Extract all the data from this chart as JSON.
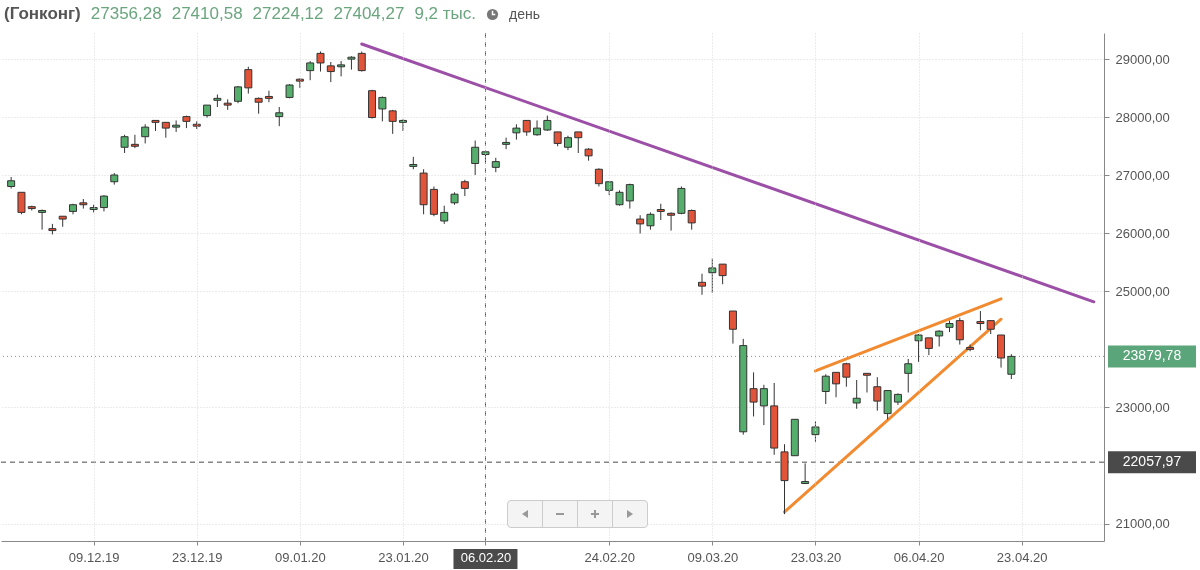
{
  "chart_data": {
    "type": "candlestick",
    "title": "(Гонконг)",
    "annotations": [
      "27356,28",
      "27410,58",
      "27224,12",
      "27404,27",
      "9,2 тыс.",
      "день"
    ],
    "categories": [
      null,
      null,
      null,
      null,
      null,
      null,
      null,
      null,
      "09.12.19",
      null,
      null,
      null,
      null,
      null,
      null,
      null,
      null,
      null,
      "23.12.19",
      null,
      null,
      null,
      null,
      null,
      null,
      null,
      null,
      null,
      "09.01.20",
      null,
      null,
      null,
      null,
      null,
      null,
      null,
      null,
      null,
      "23.01.20",
      null,
      null,
      null,
      null,
      null,
      null,
      null,
      "06.02.20",
      null,
      null,
      null,
      null,
      null,
      null,
      null,
      null,
      null,
      null,
      null,
      "24.02.20",
      null,
      null,
      null,
      null,
      null,
      null,
      null,
      null,
      null,
      "09.03.20",
      null,
      null,
      null,
      null,
      null,
      null,
      null,
      null,
      null,
      "23.03.20",
      null,
      null,
      null,
      null,
      null,
      null,
      null,
      null,
      null,
      "06.04.20",
      null,
      null,
      null,
      null,
      null,
      null,
      null,
      null,
      null,
      "23.04.20",
      null,
      null,
      null,
      null,
      null,
      null,
      null
    ],
    "ohlc": [
      [
        26806,
        26970,
        26772,
        26905
      ],
      [
        26706,
        26706,
        26327,
        26360
      ],
      [
        26459,
        26476,
        26393,
        26426
      ],
      [
        26360,
        26410,
        26063,
        26393
      ],
      [
        26080,
        26162,
        25981,
        26047
      ],
      [
        26294,
        26294,
        26113,
        26245
      ],
      [
        26377,
        26509,
        26327,
        26492
      ],
      [
        26525,
        26591,
        26426,
        26492
      ],
      [
        26410,
        26492,
        26360,
        26443
      ],
      [
        26443,
        26657,
        26377,
        26641
      ],
      [
        26888,
        27037,
        26839,
        27004
      ],
      [
        27482,
        27697,
        27383,
        27664
      ],
      [
        27532,
        27697,
        27466,
        27499
      ],
      [
        27664,
        27878,
        27548,
        27829
      ],
      [
        27944,
        27944,
        27763,
        27911
      ],
      [
        27911,
        27911,
        27647,
        27812
      ],
      [
        27829,
        27944,
        27746,
        27862
      ],
      [
        28010,
        28027,
        27812,
        27928
      ],
      [
        27878,
        27928,
        27796,
        27845
      ],
      [
        28027,
        28208,
        27994,
        28208
      ],
      [
        28291,
        28390,
        28175,
        28324
      ],
      [
        28241,
        28307,
        28126,
        28208
      ],
      [
        28274,
        28538,
        28241,
        28522
      ],
      [
        28819,
        28868,
        28406,
        28505
      ],
      [
        28324,
        28340,
        28060,
        28258
      ],
      [
        28357,
        28456,
        28258,
        28324
      ],
      [
        28010,
        28175,
        27845,
        28076
      ],
      [
        28340,
        28571,
        28324,
        28554
      ],
      [
        28654,
        28670,
        28505,
        28621
      ],
      [
        28802,
        28967,
        28637,
        28934
      ],
      [
        29099,
        29132,
        28786,
        28934
      ],
      [
        28884,
        28951,
        28604,
        28786
      ],
      [
        28868,
        28967,
        28703,
        28901
      ],
      [
        29000,
        29050,
        28819,
        29033
      ],
      [
        29099,
        29132,
        28786,
        28802
      ],
      [
        28456,
        28472,
        27977,
        27994
      ],
      [
        28142,
        28357,
        27928,
        28340
      ],
      [
        28109,
        28126,
        27713,
        27928
      ],
      [
        27911,
        27961,
        27763,
        27944
      ],
      [
        27152,
        27317,
        27103,
        27185
      ],
      [
        27037,
        27103,
        26327,
        26492
      ],
      [
        26756,
        26806,
        26294,
        26327
      ],
      [
        26212,
        26476,
        26162,
        26360
      ],
      [
        26525,
        26706,
        26492,
        26674
      ],
      [
        26888,
        26921,
        26641,
        26773
      ],
      [
        27202,
        27598,
        27004,
        27482
      ],
      [
        27356.28,
        27410.58,
        27224.12,
        27404.27
      ],
      [
        27136,
        27301,
        27053,
        27235
      ],
      [
        27532,
        27647,
        27449,
        27565
      ],
      [
        27730,
        27878,
        27614,
        27812
      ],
      [
        27944,
        27944,
        27680,
        27746
      ],
      [
        27697,
        27944,
        27680,
        27812
      ],
      [
        27779,
        28027,
        27763,
        27944
      ],
      [
        27746,
        27746,
        27499,
        27548
      ],
      [
        27482,
        27680,
        27433,
        27647
      ],
      [
        27746,
        27746,
        27383,
        27647
      ],
      [
        27449,
        27466,
        27251,
        27334
      ],
      [
        27103,
        27119,
        26806,
        26855
      ],
      [
        26740,
        26888,
        26657,
        26888
      ],
      [
        26492,
        26740,
        26476,
        26706
      ],
      [
        26558,
        26855,
        26426,
        26839
      ],
      [
        26245,
        26311,
        25997,
        26162
      ],
      [
        26129,
        26360,
        26063,
        26327
      ],
      [
        26410,
        26509,
        26228,
        26377
      ],
      [
        26344,
        26360,
        26047,
        26311
      ],
      [
        26344,
        26806,
        26327,
        26773
      ],
      [
        26393,
        26410,
        26063,
        26179
      ],
      [
        25156,
        25304,
        24941,
        25090
      ],
      [
        25321,
        25568,
        24974,
        25403
      ],
      [
        25469,
        25469,
        25123,
        25271
      ],
      [
        24661,
        24661,
        24100,
        24347
      ],
      [
        22581,
        24182,
        22532,
        24066
      ],
      [
        23324,
        23605,
        22845,
        23093
      ],
      [
        23027,
        23390,
        22697,
        23324
      ],
      [
        23027,
        23423,
        22185,
        22301
      ],
      [
        22235,
        22367,
        21162,
        21740
      ],
      [
        22169,
        22796,
        22169,
        22796
      ],
      [
        21690,
        22037,
        21690,
        21724
      ],
      [
        22532,
        22763,
        22400,
        22664
      ],
      [
        23275,
        23572,
        23060,
        23539
      ],
      [
        23605,
        23605,
        23176,
        23407
      ],
      [
        23753,
        23770,
        23357,
        23522
      ],
      [
        23077,
        23473,
        22978,
        23159
      ],
      [
        23588,
        23588,
        23258,
        23555
      ],
      [
        23357,
        23522,
        22945,
        23110
      ],
      [
        22895,
        23291,
        22796,
        23291
      ],
      [
        23093,
        23242,
        23044,
        23225
      ],
      [
        23588,
        23836,
        23258,
        23753
      ],
      [
        24149,
        24265,
        23786,
        24248
      ],
      [
        24199,
        24199,
        23902,
        24017
      ],
      [
        24232,
        24331,
        24050,
        24314
      ],
      [
        24380,
        24496,
        24298,
        24446
      ],
      [
        24496,
        24545,
        24083,
        24166
      ],
      [
        24034,
        24083,
        23968,
        24001
      ],
      [
        24479,
        24661,
        24331,
        24446
      ],
      [
        24496,
        24496,
        24265,
        24347
      ],
      [
        24248,
        24248,
        23687,
        23852
      ],
      [
        23572,
        23918,
        23489,
        23879.78
      ],
      null,
      null,
      null,
      null,
      null,
      null,
      null,
      null
    ],
    "colors": [
      "#56ae6c",
      "#e2543a",
      "#e2543a",
      "#56ae6c",
      "#e2543a",
      "#e2543a",
      "#56ae6c",
      "#e2543a",
      "#56ae6c",
      "#56ae6c",
      "#56ae6c",
      "#56ae6c",
      "#e2543a",
      "#56ae6c",
      "#e2543a",
      "#e2543a",
      "#56ae6c",
      "#e2543a",
      "#e2543a",
      "#56ae6c",
      "#56ae6c",
      "#e2543a",
      "#56ae6c",
      "#e2543a",
      "#e2543a",
      "#e2543a",
      "#56ae6c",
      "#56ae6c",
      "#e2543a",
      "#56ae6c",
      "#e2543a",
      "#e2543a",
      "#56ae6c",
      "#56ae6c",
      "#e2543a",
      "#e2543a",
      "#56ae6c",
      "#e2543a",
      "#56ae6c",
      "#56ae6c",
      "#e2543a",
      "#e2543a",
      "#56ae6c",
      "#56ae6c",
      "#e2543a",
      "#56ae6c",
      "#56ae6c",
      "#56ae6c",
      "#56ae6c",
      "#56ae6c",
      "#e2543a",
      "#56ae6c",
      "#56ae6c",
      "#e2543a",
      "#56ae6c",
      "#e2543a",
      "#e2543a",
      "#e2543a",
      "#56ae6c",
      "#56ae6c",
      "#56ae6c",
      "#e2543a",
      "#56ae6c",
      "#e2543a",
      "#e2543a",
      "#56ae6c",
      "#e2543a",
      "#e2543a",
      "#56ae6c",
      "#e2543a",
      "#e2543a",
      "#56ae6c",
      "#e2543a",
      "#56ae6c",
      "#e2543a",
      "#e2543a",
      "#56ae6c",
      "#56ae6c",
      "#56ae6c",
      "#56ae6c",
      "#e2543a",
      "#e2543a",
      "#56ae6c",
      "#e2543a",
      "#e2543a",
      "#56ae6c",
      "#56ae6c",
      "#56ae6c",
      "#56ae6c",
      "#e2543a",
      "#56ae6c",
      "#56ae6c",
      "#e2543a",
      "#e2543a",
      "#e2543a",
      "#e2543a",
      "#e2543a",
      "#56ae6c",
      null,
      null,
      null,
      null,
      null,
      null,
      null,
      null
    ],
    "series": [
      {
        "type": "line",
        "color": "#9c4fa6",
        "values": [
          null,
          null,
          null,
          null,
          null,
          null,
          null,
          null,
          null,
          null,
          null,
          null,
          null,
          null,
          null,
          null,
          null,
          null,
          null,
          null,
          null,
          null,
          null,
          null,
          null,
          null,
          null,
          null,
          null,
          null,
          null,
          null,
          null,
          null,
          29260,
          null,
          null,
          null,
          null,
          null,
          null,
          null,
          null,
          null,
          null,
          null,
          null,
          null,
          null,
          null,
          null,
          null,
          null,
          null,
          null,
          null,
          null,
          null,
          null,
          null,
          null,
          null,
          null,
          null,
          null,
          null,
          null,
          null,
          null,
          null,
          null,
          null,
          null,
          null,
          null,
          null,
          null,
          null,
          null,
          null,
          null,
          null,
          null,
          null,
          null,
          null,
          null,
          null,
          null,
          null,
          null,
          null,
          null,
          null,
          null,
          null,
          null,
          null,
          null,
          null,
          null,
          null,
          null,
          null,
          null,
          24820
        ]
      },
      {
        "type": "line",
        "color": "#f28a30",
        "values": [
          null,
          null,
          null,
          null,
          null,
          null,
          null,
          null,
          null,
          null,
          null,
          null,
          null,
          null,
          null,
          null,
          null,
          null,
          null,
          null,
          null,
          null,
          null,
          null,
          null,
          null,
          null,
          null,
          null,
          null,
          null,
          null,
          null,
          null,
          null,
          null,
          null,
          null,
          null,
          null,
          null,
          null,
          null,
          null,
          null,
          null,
          null,
          null,
          null,
          null,
          null,
          null,
          null,
          null,
          null,
          null,
          null,
          null,
          null,
          null,
          null,
          null,
          null,
          null,
          null,
          null,
          null,
          null,
          null,
          null,
          null,
          null,
          null,
          null,
          null,
          null,
          null,
          null,
          23630,
          null,
          null,
          null,
          null,
          null,
          null,
          null,
          null,
          null,
          null,
          null,
          null,
          null,
          null,
          null,
          null,
          null,
          24870,
          null,
          null,
          null,
          null,
          null,
          null,
          null,
          null,
          null
        ]
      },
      {
        "type": "line",
        "color": "#f28a30",
        "values": [
          null,
          null,
          null,
          null,
          null,
          null,
          null,
          null,
          null,
          null,
          null,
          null,
          null,
          null,
          null,
          null,
          null,
          null,
          null,
          null,
          null,
          null,
          null,
          null,
          null,
          null,
          null,
          null,
          null,
          null,
          null,
          null,
          null,
          null,
          null,
          null,
          null,
          null,
          null,
          null,
          null,
          null,
          null,
          null,
          null,
          null,
          null,
          null,
          null,
          null,
          null,
          null,
          null,
          null,
          null,
          null,
          null,
          null,
          null,
          null,
          null,
          null,
          null,
          null,
          null,
          null,
          null,
          null,
          null,
          null,
          null,
          null,
          null,
          null,
          null,
          21200,
          null,
          null,
          null,
          null,
          null,
          null,
          null,
          null,
          null,
          null,
          null,
          null,
          null,
          null,
          null,
          null,
          null,
          null,
          null,
          null,
          24520,
          null,
          null,
          null,
          null,
          null,
          null,
          null,
          null,
          null
        ]
      }
    ],
    "ylim": [
      20700,
      29450
    ],
    "yticks": [
      {
        "value": 21000,
        "label": "21000,00"
      },
      {
        "value": 23000,
        "label": "23000,00"
      },
      {
        "value": 25000,
        "label": "25000,00"
      },
      {
        "value": 26000,
        "label": "26000,00"
      },
      {
        "value": 27000,
        "label": "27000,00"
      },
      {
        "value": 28000,
        "label": "28000,00"
      },
      {
        "value": 29000,
        "label": "29000,00"
      }
    ],
    "grid": true,
    "ref_lines": [
      {
        "axis": "y",
        "value": 22057.97,
        "label": "22057,97",
        "color": "#4a4a4a",
        "line_style": "dashed"
      },
      {
        "axis": "y",
        "value": 23879.78,
        "label": "23879,78",
        "color": "#5aa57a",
        "line_style": "dotted"
      },
      {
        "axis": "x",
        "value": "06.02.20",
        "color": "#4a4a4a",
        "line_style": "dashed"
      }
    ]
  }
}
